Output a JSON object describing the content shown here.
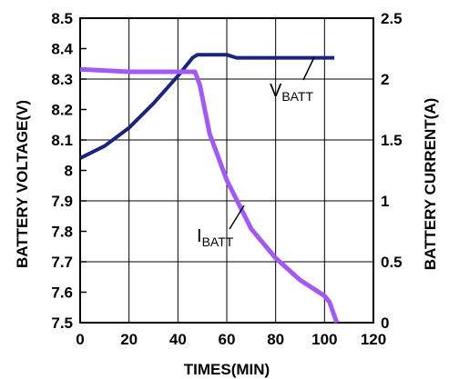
{
  "chart_data": {
    "type": "line",
    "title": "",
    "xlabel": "TIMES(MIN)",
    "ylabel_left": "BATTERY VOLTAGE(V)",
    "ylabel_right": "BATTERY CURRENT(A)",
    "xlim": [
      0,
      120
    ],
    "ylim_left": [
      7.5,
      8.5
    ],
    "ylim_right": [
      0,
      2.5
    ],
    "x_ticks": [
      "0",
      "20",
      "40",
      "60",
      "80",
      "100",
      "120"
    ],
    "y_left_ticks": [
      "7.5",
      "7.6",
      "7.7",
      "7.8",
      "7.9",
      "8",
      "8.1",
      "8.2",
      "8.3",
      "8.4",
      "8.5"
    ],
    "y_right_ticks": [
      "0",
      "0.5",
      "1",
      "1.5",
      "2",
      "2.5"
    ],
    "grid": true,
    "series": [
      {
        "name_main": "V",
        "name_sub": "BATT",
        "axis": "left",
        "color": "#1a237e",
        "points": [
          [
            0,
            8.04
          ],
          [
            10,
            8.08
          ],
          [
            20,
            8.14
          ],
          [
            30,
            8.22
          ],
          [
            40,
            8.31
          ],
          [
            46,
            8.37
          ],
          [
            48,
            8.38
          ],
          [
            60,
            8.38
          ],
          [
            64,
            8.37
          ],
          [
            80,
            8.37
          ],
          [
            100,
            8.37
          ],
          [
            104,
            8.37
          ]
        ]
      },
      {
        "name_main": "I",
        "name_sub": "BATT",
        "axis": "right",
        "color": "#a259f7",
        "points": [
          [
            0,
            2.08
          ],
          [
            10,
            2.07
          ],
          [
            20,
            2.06
          ],
          [
            30,
            2.06
          ],
          [
            40,
            2.06
          ],
          [
            47,
            2.06
          ],
          [
            49,
            1.95
          ],
          [
            53,
            1.55
          ],
          [
            60,
            1.17
          ],
          [
            65,
            0.97
          ],
          [
            70,
            0.77
          ],
          [
            80,
            0.53
          ],
          [
            90,
            0.35
          ],
          [
            100,
            0.22
          ],
          [
            102,
            0.17
          ],
          [
            105,
            0.0
          ]
        ]
      }
    ]
  }
}
